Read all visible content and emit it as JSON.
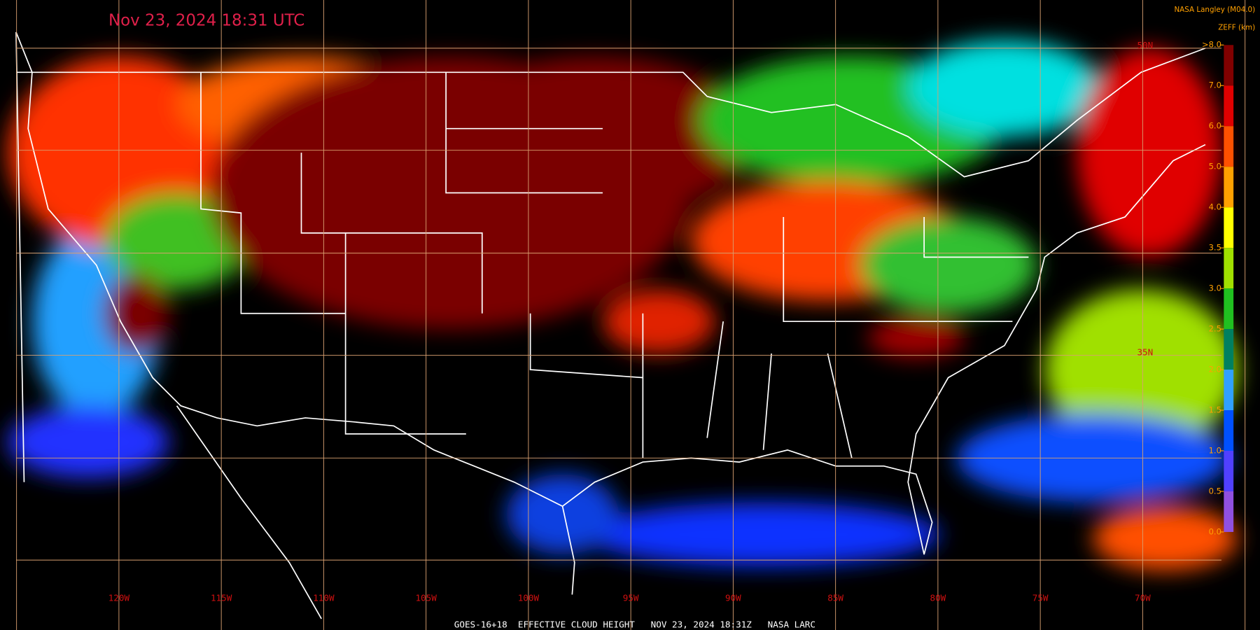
{
  "header": {
    "title": "Nov 23, 2024 18:31 UTC",
    "credit": "NASA Langley (M04.0)"
  },
  "colorbar": {
    "title": "ZEFF (km)",
    "ticks": [
      {
        "value": 8,
        "label": ">8.0"
      },
      {
        "value": 7,
        "label": "7.0"
      },
      {
        "value": 6,
        "label": "6.0"
      },
      {
        "value": 5,
        "label": "5.0"
      },
      {
        "value": 4,
        "label": "4.0"
      },
      {
        "value": 3.5,
        "label": "3.5"
      },
      {
        "value": 3,
        "label": "3.0"
      },
      {
        "value": 2.5,
        "label": "2.5"
      },
      {
        "value": 2,
        "label": "2.0"
      },
      {
        "value": 1.5,
        "label": "1.5"
      },
      {
        "value": 1,
        "label": "1.0"
      },
      {
        "value": 0.5,
        "label": "0.5"
      },
      {
        "value": 0,
        "label": "0.0"
      }
    ],
    "colors": [
      "#800000",
      "#e00000",
      "#ff5000",
      "#ffa000",
      "#ffff00",
      "#a0e000",
      "#20c020",
      "#008060",
      "#30a0ff",
      "#0050ff",
      "#5040ff",
      "#9050e0"
    ]
  },
  "grid": {
    "longitude_labels": [
      "120W",
      "115W",
      "110W",
      "105W",
      "100W",
      "95W",
      "90W",
      "85W",
      "80W",
      "75W",
      "70W"
    ],
    "latitude_labels": [
      "50N",
      "35N"
    ]
  },
  "footer": "GOES-16+18  EFFECTIVE CLOUD HEIGHT   NOV 23, 2024 18:31Z   NASA LARC"
}
